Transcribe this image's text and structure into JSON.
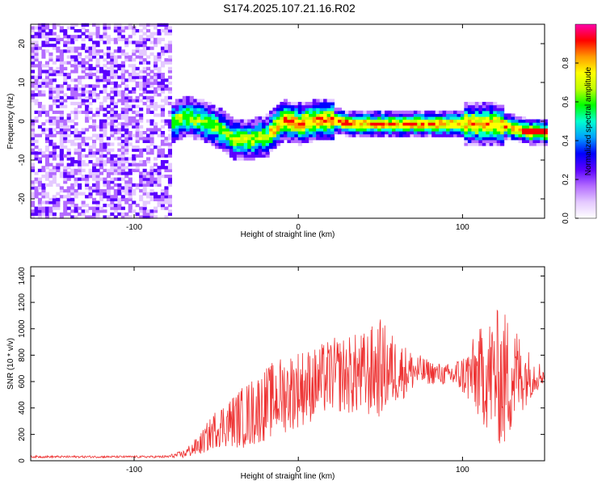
{
  "title": "S174.2025.107.21.16.R02",
  "chart_data": [
    {
      "type": "heatmap",
      "xlabel": "Height of straight line (km)",
      "ylabel": "Frequency (Hz)",
      "xlim": [
        -163,
        150
      ],
      "ylim": [
        -25,
        25
      ],
      "xticks": [
        -100,
        0,
        100
      ],
      "yticks": [
        -20,
        -10,
        0,
        10,
        20
      ],
      "grid": false,
      "track": {
        "x": [
          -80,
          -70,
          -60,
          -50,
          -40,
          -30,
          -20,
          -10,
          0,
          10,
          20,
          30,
          40,
          50,
          60,
          70,
          80,
          90,
          100,
          110,
          120,
          130,
          140,
          150
        ],
        "freq": [
          -1,
          1,
          0,
          -2,
          -5,
          -5,
          -4,
          0,
          -1,
          0,
          0,
          -1,
          -1,
          -1,
          -1,
          -1,
          -1,
          -1,
          -1,
          -1,
          -1,
          -2,
          -3,
          -3
        ]
      },
      "colorbar": {
        "label": "Normalized spectral amplitude",
        "range": [
          0,
          1
        ],
        "ticks": [
          "0.0",
          "0.2",
          "0.4",
          "0.6",
          "0.8"
        ],
        "colors": [
          "#ffffff",
          "#e4c9ff",
          "#b36bff",
          "#5b00ff",
          "#0000ff",
          "#00a0ff",
          "#00ffd0",
          "#00ff00",
          "#c0ff00",
          "#ffff00",
          "#ff9900",
          "#ff0000",
          "#ff00aa"
        ]
      }
    },
    {
      "type": "line",
      "xlabel": "Height of straight line (km)",
      "ylabel": "SNR (10 * v/v)",
      "xlim": [
        -163,
        150
      ],
      "ylim": [
        0,
        1470
      ],
      "xticks": [
        -100,
        0,
        100
      ],
      "yticks": [
        0,
        200,
        400,
        600,
        800,
        1000,
        1200,
        1400
      ],
      "color": "#ee3333",
      "grid": false,
      "envelope": {
        "x": [
          -163,
          -90,
          -80,
          -70,
          -60,
          -50,
          -40,
          -30,
          -20,
          -10,
          0,
          10,
          20,
          30,
          40,
          50,
          60,
          70,
          80,
          90,
          100,
          110,
          120,
          125,
          130,
          140,
          150
        ],
        "mean": [
          30,
          30,
          30,
          50,
          120,
          250,
          300,
          350,
          430,
          500,
          550,
          580,
          650,
          650,
          650,
          700,
          680,
          680,
          670,
          650,
          650,
          650,
          650,
          600,
          650,
          650,
          650
        ],
        "spread": [
          8,
          8,
          10,
          30,
          80,
          150,
          200,
          260,
          280,
          300,
          300,
          280,
          280,
          300,
          330,
          380,
          250,
          150,
          90,
          80,
          150,
          350,
          500,
          550,
          450,
          200,
          60
        ]
      }
    }
  ]
}
